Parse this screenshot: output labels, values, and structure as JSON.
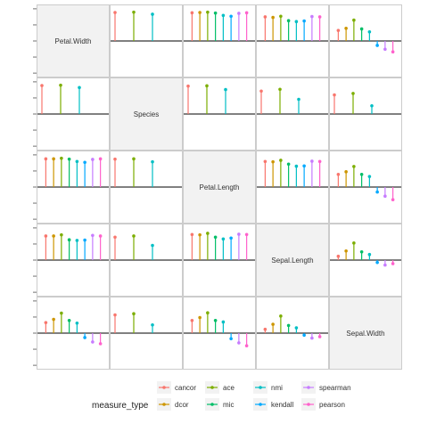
{
  "chart_data": {
    "type": "lollipop-matrix",
    "variables": [
      "Petal.Width",
      "Species",
      "Petal.Length",
      "Sepal.Length",
      "Sepal.Width"
    ],
    "measures": [
      "cancor",
      "dcor",
      "ace",
      "mic",
      "nmi",
      "kendall",
      "spearman",
      "pearson"
    ],
    "legend": {
      "title": "measure_type",
      "position": "bottom",
      "entries": [
        {
          "key": "cancor",
          "label": "cancor",
          "color": "#F8766D"
        },
        {
          "key": "dcor",
          "label": "dcor",
          "color": "#CD9600"
        },
        {
          "key": "ace",
          "label": "ace",
          "color": "#7CAE00"
        },
        {
          "key": "mic",
          "label": "mic",
          "color": "#00BE67"
        },
        {
          "key": "nmi",
          "label": "nmi",
          "color": "#00BFC4"
        },
        {
          "key": "kendall",
          "label": "kendall",
          "color": "#00A9FF"
        },
        {
          "key": "spearman",
          "label": "spearman",
          "color": "#C77CFF"
        },
        {
          "key": "pearson",
          "label": "pearson",
          "color": "#FF61CC"
        }
      ]
    },
    "ylim": [
      -1,
      1
    ],
    "cells": [
      {
        "row": 0,
        "col": 1,
        "points": [
          {
            "m": "cancor",
            "v": 0.97
          },
          {
            "m": "ace",
            "v": 0.98
          },
          {
            "m": "nmi",
            "v": 0.91
          }
        ]
      },
      {
        "row": 0,
        "col": 2,
        "points": [
          {
            "m": "cancor",
            "v": 0.96
          },
          {
            "m": "dcor",
            "v": 0.97
          },
          {
            "m": "ace",
            "v": 0.98
          },
          {
            "m": "mic",
            "v": 0.95
          },
          {
            "m": "nmi",
            "v": 0.87
          },
          {
            "m": "kendall",
            "v": 0.84
          },
          {
            "m": "spearman",
            "v": 0.94
          },
          {
            "m": "pearson",
            "v": 0.96
          }
        ]
      },
      {
        "row": 0,
        "col": 3,
        "points": [
          {
            "m": "cancor",
            "v": 0.82
          },
          {
            "m": "dcor",
            "v": 0.8
          },
          {
            "m": "ace",
            "v": 0.84
          },
          {
            "m": "mic",
            "v": 0.69
          },
          {
            "m": "nmi",
            "v": 0.66
          },
          {
            "m": "kendall",
            "v": 0.68
          },
          {
            "m": "spearman",
            "v": 0.83
          },
          {
            "m": "pearson",
            "v": 0.82
          }
        ]
      },
      {
        "row": 0,
        "col": 4,
        "points": [
          {
            "m": "cancor",
            "v": 0.36
          },
          {
            "m": "dcor",
            "v": 0.43
          },
          {
            "m": "ace",
            "v": 0.71
          },
          {
            "m": "mic",
            "v": 0.41
          },
          {
            "m": "nmi",
            "v": 0.31
          },
          {
            "m": "kendall",
            "v": -0.15
          },
          {
            "m": "spearman",
            "v": -0.28
          },
          {
            "m": "pearson",
            "v": -0.37
          }
        ]
      },
      {
        "row": 1,
        "col": 0,
        "points": [
          {
            "m": "cancor",
            "v": 0.97
          },
          {
            "m": "ace",
            "v": 0.98
          },
          {
            "m": "nmi",
            "v": 0.9
          }
        ]
      },
      {
        "row": 1,
        "col": 2,
        "points": [
          {
            "m": "cancor",
            "v": 0.95
          },
          {
            "m": "ace",
            "v": 0.96
          },
          {
            "m": "nmi",
            "v": 0.83
          }
        ]
      },
      {
        "row": 1,
        "col": 3,
        "points": [
          {
            "m": "cancor",
            "v": 0.78
          },
          {
            "m": "ace",
            "v": 0.84
          },
          {
            "m": "nmi",
            "v": 0.5
          }
        ]
      },
      {
        "row": 1,
        "col": 4,
        "points": [
          {
            "m": "cancor",
            "v": 0.65
          },
          {
            "m": "ace",
            "v": 0.7
          },
          {
            "m": "nmi",
            "v": 0.28
          }
        ]
      },
      {
        "row": 2,
        "col": 0,
        "points": [
          {
            "m": "cancor",
            "v": 0.96
          },
          {
            "m": "dcor",
            "v": 0.96
          },
          {
            "m": "ace",
            "v": 0.98
          },
          {
            "m": "mic",
            "v": 0.95
          },
          {
            "m": "nmi",
            "v": 0.87
          },
          {
            "m": "kendall",
            "v": 0.84
          },
          {
            "m": "spearman",
            "v": 0.94
          },
          {
            "m": "pearson",
            "v": 0.96
          }
        ]
      },
      {
        "row": 2,
        "col": 1,
        "points": [
          {
            "m": "cancor",
            "v": 0.95
          },
          {
            "m": "ace",
            "v": 0.96
          },
          {
            "m": "nmi",
            "v": 0.86
          }
        ]
      },
      {
        "row": 2,
        "col": 3,
        "points": [
          {
            "m": "cancor",
            "v": 0.87
          },
          {
            "m": "dcor",
            "v": 0.86
          },
          {
            "m": "ace",
            "v": 0.91
          },
          {
            "m": "mic",
            "v": 0.78
          },
          {
            "m": "nmi",
            "v": 0.71
          },
          {
            "m": "kendall",
            "v": 0.72
          },
          {
            "m": "spearman",
            "v": 0.88
          },
          {
            "m": "pearson",
            "v": 0.87
          }
        ]
      },
      {
        "row": 2,
        "col": 4,
        "points": [
          {
            "m": "cancor",
            "v": 0.43
          },
          {
            "m": "dcor",
            "v": 0.52
          },
          {
            "m": "ace",
            "v": 0.7
          },
          {
            "m": "mic",
            "v": 0.43
          },
          {
            "m": "nmi",
            "v": 0.36
          },
          {
            "m": "kendall",
            "v": -0.17
          },
          {
            "m": "spearman",
            "v": -0.31
          },
          {
            "m": "pearson",
            "v": -0.43
          }
        ]
      },
      {
        "row": 3,
        "col": 0,
        "points": [
          {
            "m": "cancor",
            "v": 0.82
          },
          {
            "m": "dcor",
            "v": 0.82
          },
          {
            "m": "ace",
            "v": 0.86
          },
          {
            "m": "mic",
            "v": 0.69
          },
          {
            "m": "nmi",
            "v": 0.67
          },
          {
            "m": "kendall",
            "v": 0.68
          },
          {
            "m": "spearman",
            "v": 0.84
          },
          {
            "m": "pearson",
            "v": 0.82
          }
        ]
      },
      {
        "row": 3,
        "col": 1,
        "points": [
          {
            "m": "cancor",
            "v": 0.78
          },
          {
            "m": "ace",
            "v": 0.82
          },
          {
            "m": "nmi",
            "v": 0.5
          }
        ]
      },
      {
        "row": 3,
        "col": 2,
        "points": [
          {
            "m": "cancor",
            "v": 0.87
          },
          {
            "m": "dcor",
            "v": 0.86
          },
          {
            "m": "ace",
            "v": 0.91
          },
          {
            "m": "mic",
            "v": 0.78
          },
          {
            "m": "nmi",
            "v": 0.72
          },
          {
            "m": "kendall",
            "v": 0.75
          },
          {
            "m": "spearman",
            "v": 0.88
          },
          {
            "m": "pearson",
            "v": 0.87
          }
        ]
      },
      {
        "row": 3,
        "col": 4,
        "points": [
          {
            "m": "cancor",
            "v": 0.13
          },
          {
            "m": "dcor",
            "v": 0.31
          },
          {
            "m": "ace",
            "v": 0.58
          },
          {
            "m": "mic",
            "v": 0.28
          },
          {
            "m": "nmi",
            "v": 0.19
          },
          {
            "m": "kendall",
            "v": -0.08
          },
          {
            "m": "spearman",
            "v": -0.17
          },
          {
            "m": "pearson",
            "v": -0.12
          }
        ]
      },
      {
        "row": 4,
        "col": 0,
        "points": [
          {
            "m": "cancor",
            "v": 0.36
          },
          {
            "m": "dcor",
            "v": 0.47
          },
          {
            "m": "ace",
            "v": 0.68
          },
          {
            "m": "mic",
            "v": 0.43
          },
          {
            "m": "nmi",
            "v": 0.34
          },
          {
            "m": "kendall",
            "v": -0.15
          },
          {
            "m": "spearman",
            "v": -0.3
          },
          {
            "m": "pearson",
            "v": -0.36
          }
        ]
      },
      {
        "row": 4,
        "col": 1,
        "points": [
          {
            "m": "cancor",
            "v": 0.62
          },
          {
            "m": "ace",
            "v": 0.66
          },
          {
            "m": "nmi",
            "v": 0.28
          }
        ]
      },
      {
        "row": 4,
        "col": 2,
        "points": [
          {
            "m": "cancor",
            "v": 0.43
          },
          {
            "m": "dcor",
            "v": 0.53
          },
          {
            "m": "ace",
            "v": 0.69
          },
          {
            "m": "mic",
            "v": 0.43
          },
          {
            "m": "nmi",
            "v": 0.38
          },
          {
            "m": "kendall",
            "v": -0.19
          },
          {
            "m": "spearman",
            "v": -0.33
          },
          {
            "m": "pearson",
            "v": -0.43
          }
        ]
      },
      {
        "row": 4,
        "col": 3,
        "points": [
          {
            "m": "cancor",
            "v": 0.13
          },
          {
            "m": "dcor",
            "v": 0.3
          },
          {
            "m": "ace",
            "v": 0.58
          },
          {
            "m": "mic",
            "v": 0.26
          },
          {
            "m": "nmi",
            "v": 0.18
          },
          {
            "m": "kendall",
            "v": -0.07
          },
          {
            "m": "spearman",
            "v": -0.17
          },
          {
            "m": "pearson",
            "v": -0.12
          }
        ]
      }
    ]
  }
}
